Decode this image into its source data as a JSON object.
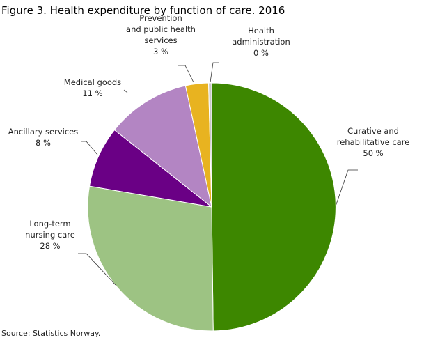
{
  "chart_data": {
    "type": "pie",
    "title": "Figure 3. Health expenditure by function of care. 2016",
    "source": "Source: Statistics Norway.",
    "slices": [
      {
        "name": "Curative and rehabilitative care",
        "lines": [
          "Curative and",
          "rehabilitative care"
        ],
        "value": 50,
        "label": "50 %",
        "color": "#3d8700"
      },
      {
        "name": "Long-term nursing care",
        "lines": [
          "Long-term",
          "nursing care"
        ],
        "value": 28,
        "label": "28 %",
        "color": "#9dc383"
      },
      {
        "name": "Ancillary services",
        "lines": [
          "Ancillary services"
        ],
        "value": 8,
        "label": "8 %",
        "color": "#6a0085"
      },
      {
        "name": "Medical goods",
        "lines": [
          "Medical goods"
        ],
        "value": 11,
        "label": "11 %",
        "color": "#b385c3"
      },
      {
        "name": "Prevention and public health services",
        "lines": [
          "Prevention",
          "and public health",
          "services"
        ],
        "value": 3,
        "label": "3 %",
        "color": "#e8b320"
      },
      {
        "name": "Health administration",
        "lines": [
          "Health",
          "administration"
        ],
        "value": 0.4,
        "label": "0 %",
        "color": "#c9c9c9"
      }
    ]
  }
}
